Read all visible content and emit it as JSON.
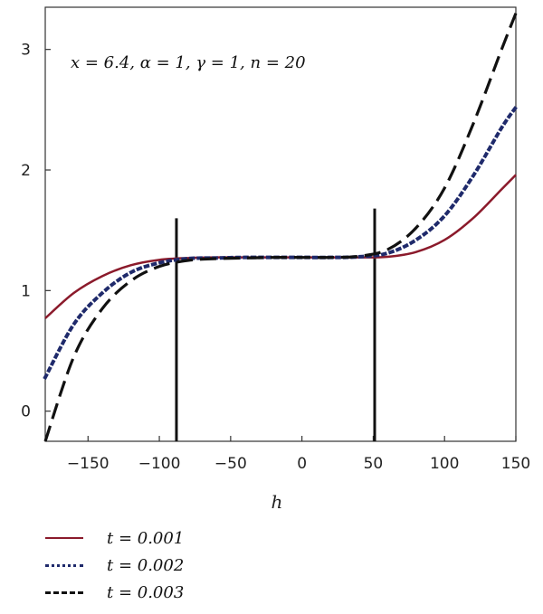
{
  "chart_data": {
    "type": "line",
    "annotation": "x = 6.4, α = 1, γ = 1, n = 20",
    "xlabel": "h",
    "ylabel": "",
    "xlim": [
      -180,
      150
    ],
    "ylim": [
      -0.25,
      3.35
    ],
    "xticks": [
      -150,
      -100,
      -50,
      0,
      50,
      100,
      150
    ],
    "yticks": [
      0,
      1,
      2,
      3
    ],
    "grid": false,
    "legend_position": "below",
    "vertical_lines": [
      {
        "x": -88,
        "y_range": [
          -0.25,
          1.6
        ]
      },
      {
        "x": 51,
        "y_range": [
          -0.25,
          1.68
        ]
      }
    ],
    "series": [
      {
        "name": "t = 0.001",
        "color": "#8b1a2b",
        "style": "solid",
        "x": [
          -180,
          -160,
          -140,
          -120,
          -100,
          -80,
          -60,
          -40,
          -20,
          0,
          20,
          40,
          60,
          80,
          100,
          120,
          140,
          150
        ],
        "y": [
          0.77,
          0.98,
          1.12,
          1.21,
          1.255,
          1.27,
          1.275,
          1.275,
          1.275,
          1.275,
          1.275,
          1.275,
          1.28,
          1.32,
          1.42,
          1.6,
          1.84,
          1.96
        ]
      },
      {
        "name": "t = 0.002",
        "color": "#1f2a6b",
        "style": "dotted",
        "x": [
          -180,
          -160,
          -140,
          -120,
          -100,
          -80,
          -60,
          -40,
          -20,
          0,
          20,
          40,
          60,
          80,
          100,
          120,
          140,
          150
        ],
        "y": [
          0.28,
          0.72,
          0.98,
          1.15,
          1.23,
          1.265,
          1.27,
          1.275,
          1.275,
          1.275,
          1.275,
          1.28,
          1.31,
          1.42,
          1.62,
          1.95,
          2.35,
          2.52
        ]
      },
      {
        "name": "t = 0.003",
        "color": "#111111",
        "style": "dashed",
        "x": [
          -180,
          -160,
          -140,
          -120,
          -100,
          -80,
          -60,
          -40,
          -20,
          0,
          20,
          40,
          60,
          80,
          100,
          120,
          140,
          150
        ],
        "y": [
          -0.25,
          0.45,
          0.85,
          1.08,
          1.2,
          1.25,
          1.265,
          1.27,
          1.275,
          1.275,
          1.275,
          1.285,
          1.34,
          1.52,
          1.85,
          2.38,
          3.0,
          3.3
        ]
      }
    ]
  }
}
